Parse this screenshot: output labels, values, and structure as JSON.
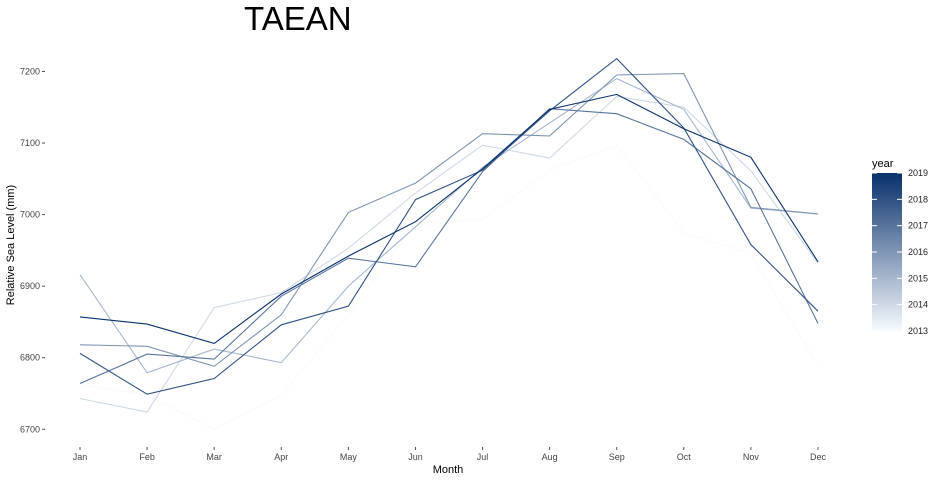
{
  "chart_data": {
    "type": "line",
    "title": "TAEAN",
    "xlabel": "Month",
    "ylabel": "Relative Sea Level (mm)",
    "categories": [
      "Jan",
      "Feb",
      "Mar",
      "Apr",
      "May",
      "Jun",
      "Jul",
      "Aug",
      "Sep",
      "Oct",
      "Nov",
      "Dec"
    ],
    "ylim": [
      6685,
      7230
    ],
    "yticks": [
      6700,
      6800,
      6900,
      7000,
      7100,
      7200
    ],
    "grid": false,
    "legend": {
      "title": "year",
      "placement": "right",
      "min": 2013,
      "max": 2019,
      "ticks": [
        2013,
        2014,
        2015,
        2016,
        2017,
        2018,
        2019
      ],
      "color_low": "#f7fbff",
      "color_high": "#08306b"
    },
    "series": [
      {
        "year": 2013,
        "values": [
          6762,
          6748,
          6700,
          6748,
          6860,
          6988,
          6993,
          7062,
          7097,
          6975,
          6945,
          6790
        ]
      },
      {
        "year": 2014,
        "values": [
          6743,
          6724,
          6870,
          6891,
          6953,
          7030,
          7097,
          7079,
          7165,
          7150,
          7061,
          6932
        ]
      },
      {
        "year": 2015,
        "values": [
          6916,
          6779,
          6812,
          6793,
          6900,
          6983,
          7066,
          7128,
          7190,
          7147,
          7009,
          7001
        ]
      },
      {
        "year": 2016,
        "values": [
          6818,
          6816,
          6788,
          6860,
          7003,
          7044,
          7113,
          7110,
          7195,
          7197,
          7010,
          7001
        ]
      },
      {
        "year": 2017,
        "values": [
          6764,
          6805,
          6798,
          6886,
          6939,
          6927,
          7060,
          7148,
          7141,
          7105,
          7036,
          6848
        ]
      },
      {
        "year": 2018,
        "values": [
          6806,
          6749,
          6771,
          6846,
          6872,
          7021,
          7062,
          7145,
          7218,
          7121,
          6958,
          6865
        ]
      },
      {
        "year": 2019,
        "values": [
          6857,
          6847,
          6820,
          6889,
          6942,
          6990,
          7064,
          7147,
          7168,
          7120,
          7080,
          6934
        ]
      }
    ]
  }
}
